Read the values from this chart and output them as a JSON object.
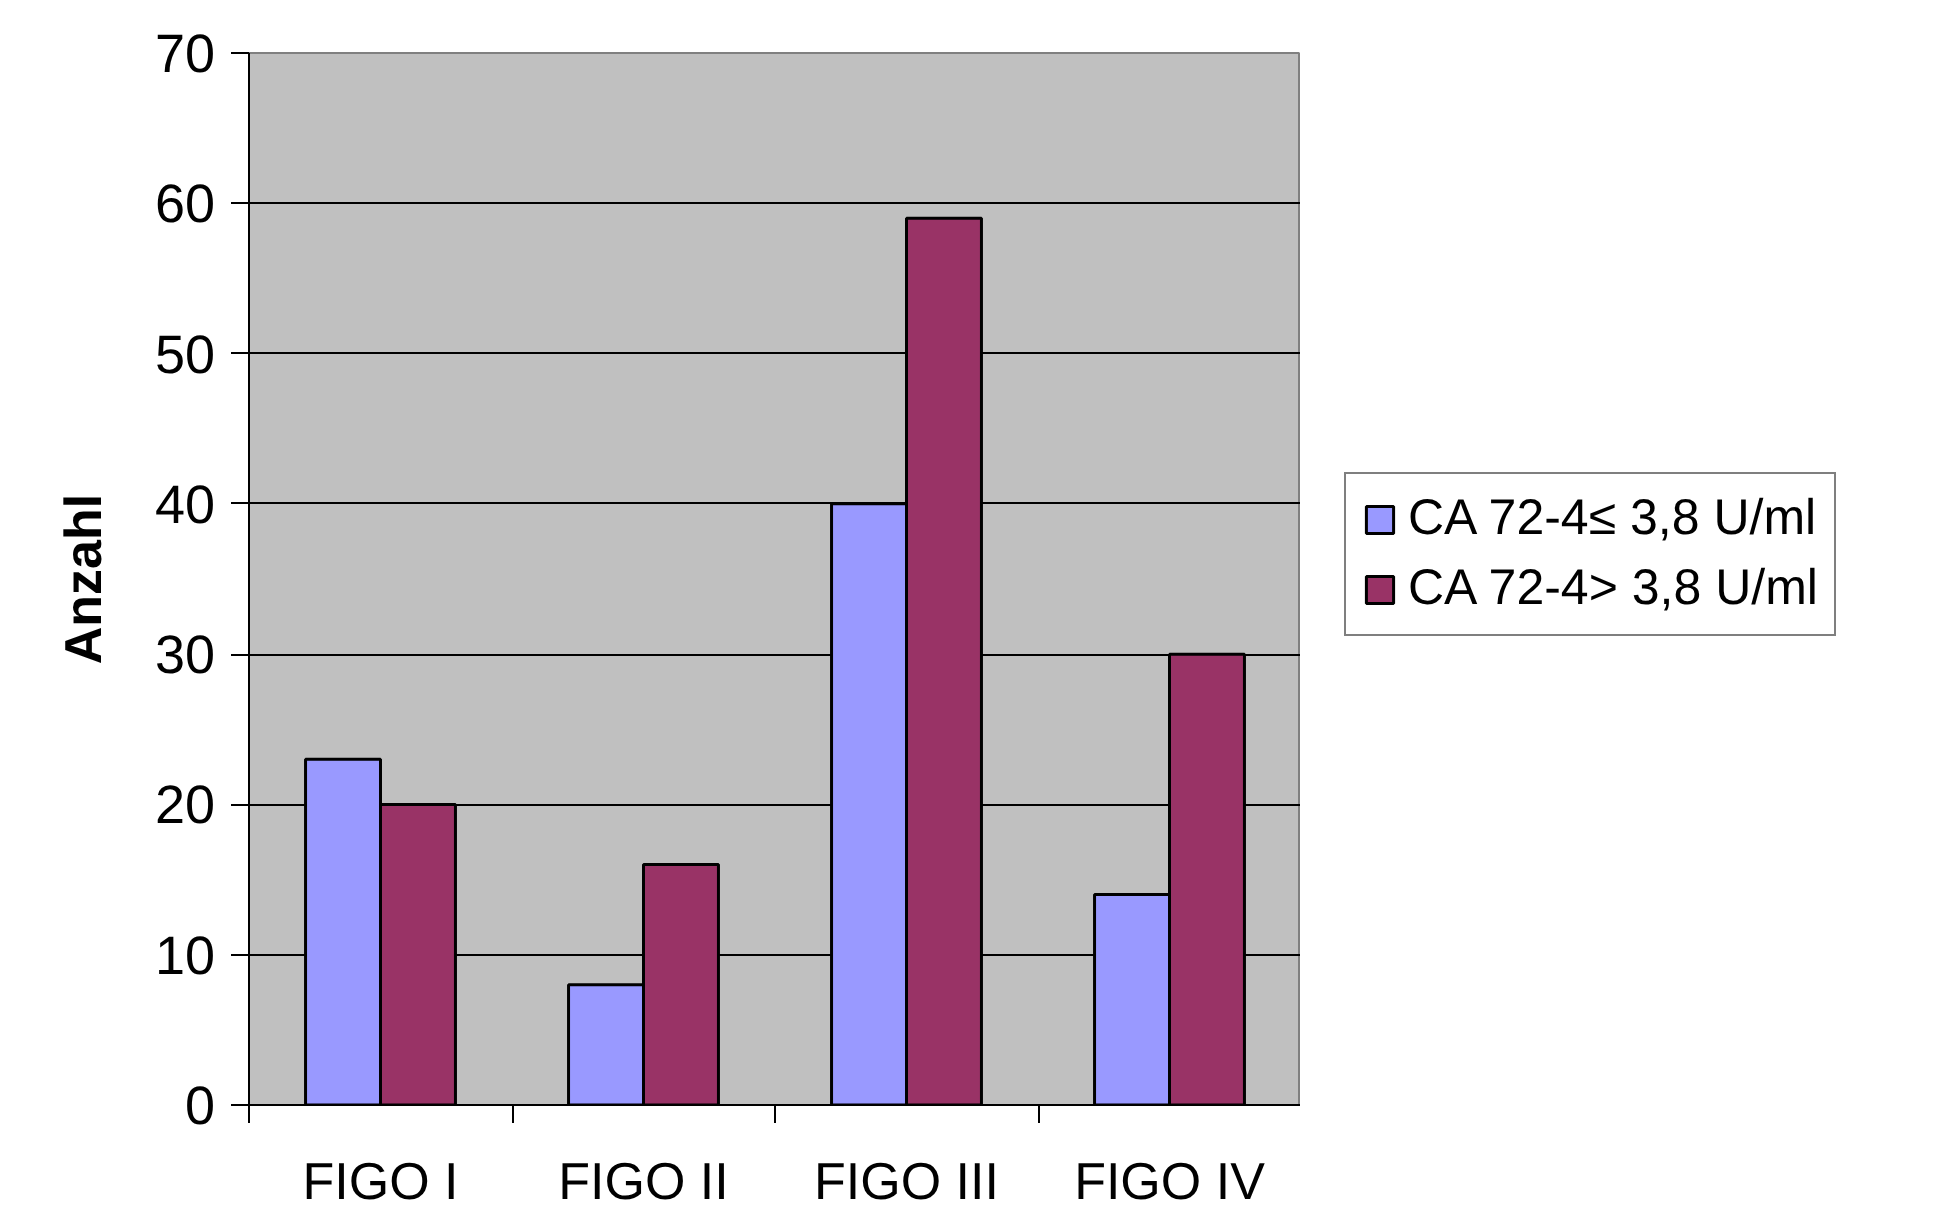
{
  "chart_data": {
    "type": "bar",
    "ylabel": "Anzahl",
    "categories": [
      "FIGO I",
      "FIGO II",
      "FIGO III",
      "FIGO IV"
    ],
    "series": [
      {
        "name": "CA 72-4≤ 3,8 U/ml",
        "color": "#9999ff",
        "values": [
          23,
          8,
          40,
          14
        ]
      },
      {
        "name": "CA 72-4> 3,8 U/ml",
        "color": "#993366",
        "values": [
          20,
          16,
          59,
          30
        ]
      }
    ],
    "ylim": [
      0,
      70
    ],
    "yticks": [
      0,
      10,
      20,
      30,
      40,
      50,
      60,
      70
    ],
    "grid": "y",
    "legend": "right"
  }
}
